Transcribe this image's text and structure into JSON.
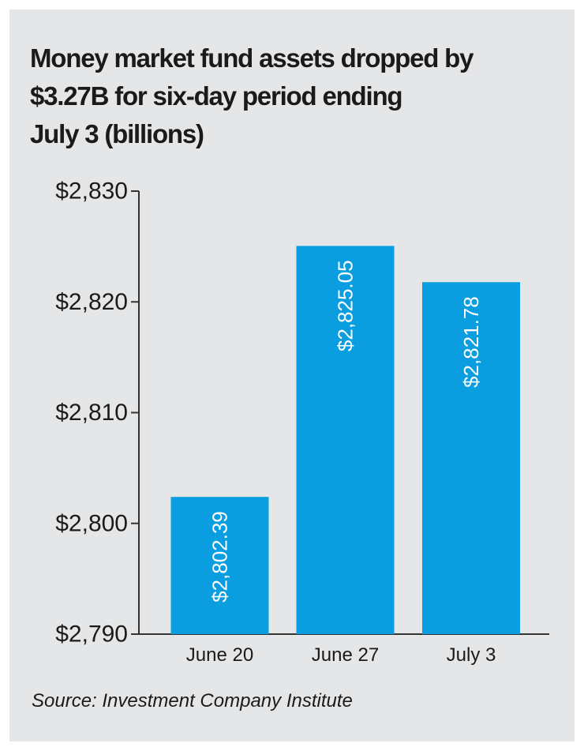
{
  "chart_data": {
    "type": "bar",
    "title_lines": [
      "Money market fund assets dropped by",
      "$3.27B for six-day period ending",
      "July 3 (billions)"
    ],
    "categories": [
      "June 20",
      "June 27",
      "July 3"
    ],
    "values": [
      2802.39,
      2825.05,
      2821.78
    ],
    "value_labels": [
      "$2,802.39",
      "$2,825.05",
      "$2,821.78"
    ],
    "yticks": [
      2790,
      2800,
      2810,
      2820,
      2830
    ],
    "ytick_labels": [
      "$2,790",
      "$2,800",
      "$2,810",
      "$2,820",
      "$2,830"
    ],
    "ylim": [
      2790,
      2830
    ],
    "xlabel": "",
    "ylabel": "",
    "grid": false,
    "source": "Source: Investment Company Institute",
    "bar_color": "#0a9de0",
    "axis_color": "#333333",
    "background_color": "#e5e6e7"
  }
}
